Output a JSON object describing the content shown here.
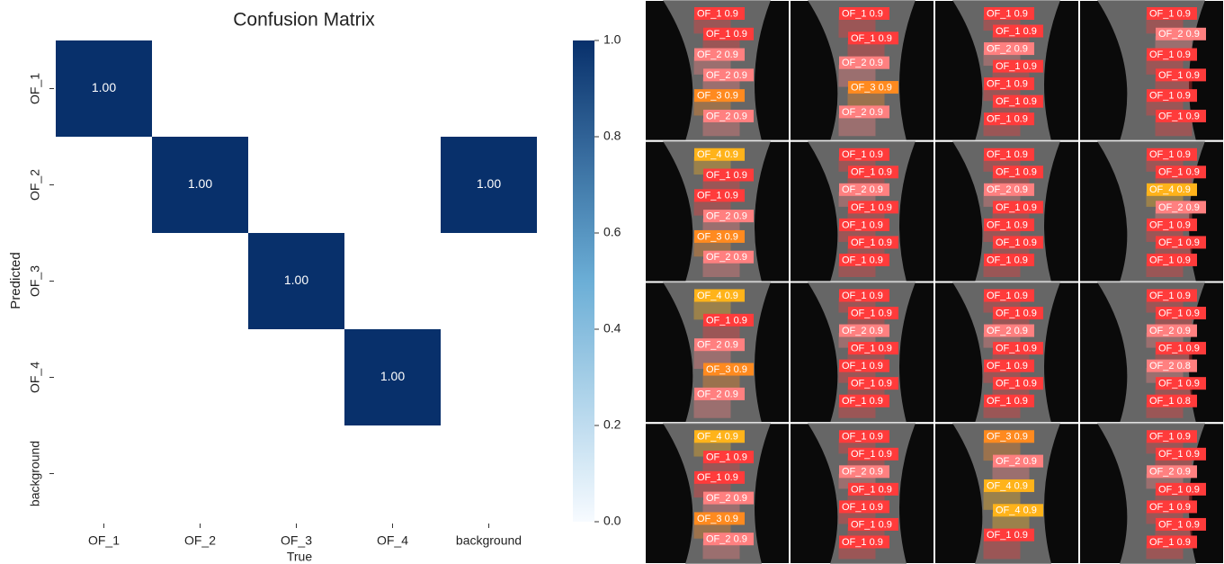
{
  "chart_data": {
    "type": "heatmap",
    "title": "Confusion Matrix",
    "xlabel": "True",
    "ylabel": "Predicted",
    "x_categories": [
      "OF_1",
      "OF_2",
      "OF_3",
      "OF_4",
      "background"
    ],
    "y_categories": [
      "OF_1",
      "OF_2",
      "OF_3",
      "OF_4",
      "background"
    ],
    "values": [
      [
        1,
        null,
        null,
        null,
        null
      ],
      [
        null,
        1,
        null,
        null,
        1
      ],
      [
        null,
        null,
        1,
        null,
        null
      ],
      [
        null,
        null,
        null,
        1,
        null
      ],
      [
        null,
        null,
        null,
        null,
        null
      ]
    ],
    "value_labels": [
      [
        "1.00",
        null,
        null,
        null,
        null
      ],
      [
        null,
        "1.00",
        null,
        null,
        "1.00"
      ],
      [
        null,
        null,
        "1.00",
        null,
        null
      ],
      [
        null,
        null,
        null,
        "1.00",
        null
      ],
      [
        null,
        null,
        null,
        null,
        null
      ]
    ],
    "colormap": [
      "#f7fbff",
      "#6baed6",
      "#08306b"
    ],
    "colorbar_lim": [
      0,
      1
    ],
    "colorbar_ticks": [
      {
        "value": 0,
        "label": "0.0"
      },
      0.2,
      0.4,
      0.6,
      0.8,
      {
        "value": 1,
        "label": "1.0"
      }
    ]
  },
  "detections": {
    "class_colors": {
      "OF_1": "#ff3b3b",
      "OF_2": "#ff8080",
      "OF_3": "#ff8a1f",
      "OF_4": "#ffb31a"
    },
    "panels": [
      {
        "labels": [
          "OF_1 0.9",
          "OF_1 0.9",
          "OF_2 0.9",
          "OF_2 0.9",
          "OF_3 0.9",
          "OF_2 0.9"
        ]
      },
      {
        "labels": [
          "OF_1 0.9",
          "OF_1 0.9",
          "OF_2 0.9",
          "OF_3 0.9",
          "OF_2 0.9"
        ]
      },
      {
        "labels": [
          "OF_1 0.9",
          "OF_1 0.9",
          "OF_2 0.9",
          "OF_1 0.9",
          "OF_1 0.9",
          "OF_1 0.9",
          "OF_1 0.9"
        ]
      },
      {
        "labels": [
          "OF_1 0.9",
          "OF_2 0.9",
          "OF_1 0.9",
          "OF_1 0.9",
          "OF_1 0.9",
          "OF_1 0.9"
        ]
      },
      {
        "labels": [
          "OF_4 0.9",
          "OF_1 0.9",
          "OF_1 0.9",
          "OF_2 0.9",
          "OF_3 0.9",
          "OF_2 0.9"
        ]
      },
      {
        "labels": [
          "OF_1 0.9",
          "OF_1 0.9",
          "OF_2 0.9",
          "OF_1 0.9",
          "OF_1 0.9",
          "OF_1 0.9",
          "OF_1 0.9"
        ]
      },
      {
        "labels": [
          "OF_1 0.9",
          "OF_1 0.9",
          "OF_2 0.9",
          "OF_1 0.9",
          "OF_1 0.9",
          "OF_1 0.9",
          "OF_1 0.9"
        ]
      },
      {
        "labels": [
          "OF_1 0.9",
          "OF_1 0.9",
          "OF_4 0.9",
          "OF_2 0.9",
          "OF_1 0.9",
          "OF_1 0.9",
          "OF_1 0.9"
        ]
      },
      {
        "labels": [
          "OF_4 0.9",
          "OF_1 0.9",
          "OF_2 0.9",
          "OF_3 0.9",
          "OF_2 0.9"
        ]
      },
      {
        "labels": [
          "OF_1 0.9",
          "OF_1 0.9",
          "OF_2 0.9",
          "OF_1 0.9",
          "OF_1 0.9",
          "OF_1 0.9",
          "OF_1 0.9"
        ]
      },
      {
        "labels": [
          "OF_1 0.9",
          "OF_1 0.9",
          "OF_2 0.9",
          "OF_1 0.9",
          "OF_1 0.9",
          "OF_1 0.9",
          "OF_1 0.9"
        ]
      },
      {
        "labels": [
          "OF_1 0.9",
          "OF_1 0.9",
          "OF_2 0.9",
          "OF_1 0.9",
          "OF_2 0.8",
          "OF_1 0.9",
          "OF_1 0.8"
        ]
      },
      {
        "labels": [
          "OF_4 0.9",
          "OF_1 0.9",
          "OF_1 0.9",
          "OF_2 0.9",
          "OF_3 0.9",
          "OF_2 0.9"
        ]
      },
      {
        "labels": [
          "OF_1 0.9",
          "OF_1 0.9",
          "OF_2 0.9",
          "OF_1 0.9",
          "OF_1 0.9",
          "OF_1 0.9",
          "OF_1 0.9"
        ]
      },
      {
        "labels": [
          "OF_3 0.9",
          "OF_2 0.9",
          "OF_4 0.9",
          "OF_4 0.9",
          "OF_1 0.9"
        ]
      },
      {
        "labels": [
          "OF_1 0.9",
          "OF_1 0.9",
          "OF_2 0.9",
          "OF_1 0.9",
          "OF_1 0.9",
          "OF_1 0.9",
          "OF_1 0.9"
        ]
      }
    ]
  }
}
